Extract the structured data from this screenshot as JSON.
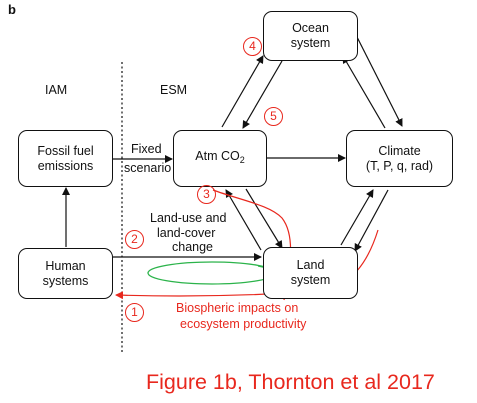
{
  "panel_letter": "b",
  "sections": {
    "left": "IAM",
    "right": "ESM"
  },
  "nodes": {
    "ocean": "Ocean system",
    "atm_main": "Atm CO",
    "atm_sub": "2",
    "climate": "Climate",
    "climate_vars": "(T, P, q, rad)",
    "land": "Land system",
    "fossil": "Fossil fuel emissions",
    "human": "Human systems"
  },
  "edge_labels": {
    "fixed_line1": "Fixed",
    "fixed_line2": "scenario",
    "luc_line1": "Land-use and",
    "luc_line2": "land-cover",
    "luc_line3": "change",
    "bio_line1": "Biospheric impacts on",
    "bio_line2": "ecosystem productivity"
  },
  "markers": [
    "1",
    "2",
    "3",
    "4",
    "5"
  ],
  "caption": "Figure 1b, Thornton et al 2017",
  "colors": {
    "arrow": "#111111",
    "feedback": "#e8281e",
    "cycle": "#2bb34a"
  }
}
